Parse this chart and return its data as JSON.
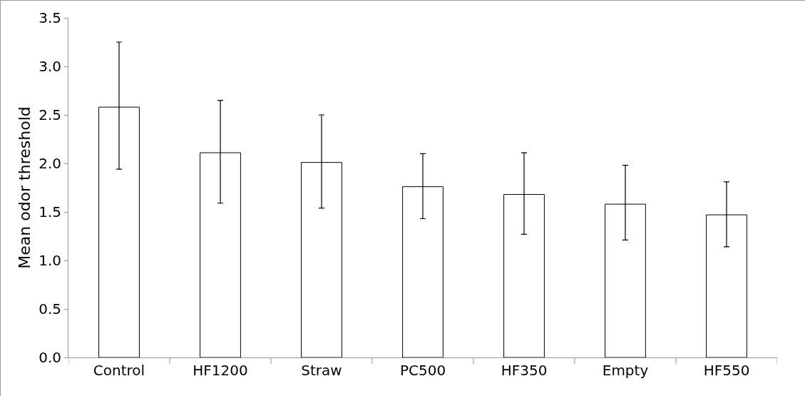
{
  "chart_data": {
    "type": "bar",
    "ylabel": "Mean odor threshold",
    "categories": [
      "Control",
      "HF1200",
      "Straw",
      "PC500",
      "HF350",
      "Empty",
      "HF550"
    ],
    "values": [
      2.58,
      2.11,
      2.01,
      1.76,
      1.68,
      1.58,
      1.47
    ],
    "errors": [
      [
        1.94,
        3.25
      ],
      [
        1.59,
        2.65
      ],
      [
        1.54,
        2.5
      ],
      [
        1.43,
        2.1
      ],
      [
        1.27,
        2.11
      ],
      [
        1.21,
        1.98
      ],
      [
        1.14,
        1.81
      ]
    ],
    "color": "#ffffff",
    "ylim": [
      0,
      3.5
    ],
    "yticks": [
      {
        "value": 0,
        "label": "0.0"
      },
      {
        "value": 0.5,
        "label": "0.5"
      },
      {
        "value": 1,
        "label": "1.0"
      },
      {
        "value": 1.5,
        "label": "1.5"
      },
      {
        "value": 2,
        "label": "2.0"
      },
      {
        "value": 2.5,
        "label": "2.5"
      },
      {
        "value": 3,
        "label": "3.0"
      },
      {
        "value": 3.5,
        "label": "3.5"
      }
    ],
    "grid": false
  }
}
